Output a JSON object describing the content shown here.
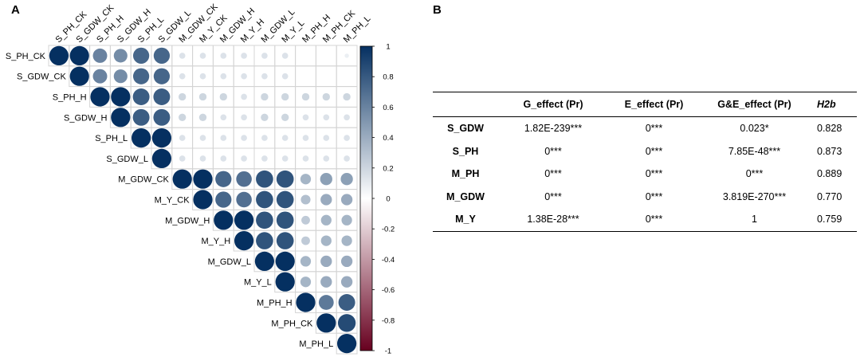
{
  "panel_a": {
    "label": "A"
  },
  "panel_b": {
    "label": "B"
  },
  "chart_data": {
    "type": "heatmap",
    "subtype": "correlation-upper-triangle",
    "title": "",
    "variables": [
      "S_PH_CK",
      "S_GDW_CK",
      "S_PH_H",
      "S_GDW_H",
      "S_PH_L",
      "S_GDW_L",
      "M_GDW_CK",
      "M_Y_CK",
      "M_GDW_H",
      "M_Y_H",
      "M_GDW_L",
      "M_Y_L",
      "M_PH_H",
      "M_PH_CK",
      "M_PH_L"
    ],
    "column_labels": [
      "S_PH_CK",
      "S_GDW_CK",
      "S_PH_H",
      "S_GDW_H",
      "S_PH_L",
      "S_GDW_L",
      "M_GDW_CK",
      "M_Y_CK",
      "M_GDW_H",
      "M_Y_H",
      "M_GDW_L",
      "M_Y_L",
      "M_PH_H",
      "M_PH_CK",
      "M_PH_L"
    ],
    "matrix": [
      [
        1,
        1,
        0.55,
        0.5,
        0.7,
        0.7,
        0.1,
        0.1,
        0.1,
        0.1,
        0.1,
        0.1,
        0,
        0,
        0.05
      ],
      [
        null,
        1,
        0.55,
        0.5,
        0.7,
        0.7,
        0.1,
        0.1,
        0.1,
        0.1,
        0.1,
        0.1,
        0,
        0,
        0
      ],
      [
        null,
        null,
        1,
        1,
        0.75,
        0.75,
        0.15,
        0.15,
        0.15,
        0.1,
        0.15,
        0.15,
        0.15,
        0.15,
        0.15
      ],
      [
        null,
        null,
        null,
        1,
        0.75,
        0.75,
        0.15,
        0.15,
        0.1,
        0.1,
        0.15,
        0.15,
        0.1,
        0.1,
        0.1
      ],
      [
        null,
        null,
        null,
        null,
        1,
        1,
        0.1,
        0.1,
        0.1,
        0.1,
        0.1,
        0.1,
        0.1,
        0.1,
        0.1
      ],
      [
        null,
        null,
        null,
        null,
        null,
        1,
        0.1,
        0.1,
        0.1,
        0.1,
        0.1,
        0.1,
        0.1,
        0.1,
        0.1
      ],
      [
        null,
        null,
        null,
        null,
        null,
        null,
        1,
        1,
        0.7,
        0.65,
        0.8,
        0.8,
        0.3,
        0.4,
        0.4
      ],
      [
        null,
        null,
        null,
        null,
        null,
        null,
        null,
        1,
        0.7,
        0.65,
        0.8,
        0.8,
        0.25,
        0.35,
        0.35
      ],
      [
        null,
        null,
        null,
        null,
        null,
        null,
        null,
        null,
        1,
        1,
        0.8,
        0.8,
        0.2,
        0.3,
        0.3
      ],
      [
        null,
        null,
        null,
        null,
        null,
        null,
        null,
        null,
        null,
        1,
        0.8,
        0.8,
        0.2,
        0.3,
        0.3
      ],
      [
        null,
        null,
        null,
        null,
        null,
        null,
        null,
        null,
        null,
        null,
        1,
        1,
        0.3,
        0.35,
        0.35
      ],
      [
        null,
        null,
        null,
        null,
        null,
        null,
        null,
        null,
        null,
        null,
        null,
        1,
        0.3,
        0.35,
        0.35
      ],
      [
        null,
        null,
        null,
        null,
        null,
        null,
        null,
        null,
        null,
        null,
        null,
        null,
        1,
        0.6,
        0.75
      ],
      [
        null,
        null,
        null,
        null,
        null,
        null,
        null,
        null,
        null,
        null,
        null,
        null,
        null,
        1,
        0.85
      ],
      [
        null,
        null,
        null,
        null,
        null,
        null,
        null,
        null,
        null,
        null,
        null,
        null,
        null,
        null,
        1
      ]
    ],
    "colorbar": {
      "range": [
        -1,
        1
      ],
      "ticks": [
        "1",
        "0.8",
        "0.6",
        "0.4",
        "0.2",
        "0",
        "-0.2",
        "-0.4",
        "-0.6",
        "-0.8",
        "-1"
      ],
      "colors": {
        "negative_end": "#67001f",
        "mid": "#ffffff",
        "positive_end": "#053061"
      }
    }
  },
  "table": {
    "headers": [
      "",
      "G_effect (Pr)",
      "E_effect (Pr)",
      "G&E_effect (Pr)",
      "H2b"
    ],
    "rows": [
      {
        "label": "S_GDW",
        "g": "1.82E-239***",
        "e": "0***",
        "ge": "0.023*",
        "h2b": "0.828"
      },
      {
        "label": "S_PH",
        "g": "0***",
        "e": "0***",
        "ge": "7.85E-48***",
        "h2b": "0.873"
      },
      {
        "label": "M_PH",
        "g": "0***",
        "e": "0***",
        "ge": "0***",
        "h2b": "0.889"
      },
      {
        "label": "M_GDW",
        "g": "0***",
        "e": "0***",
        "ge": "3.819E-270***",
        "h2b": "0.770"
      },
      {
        "label": "M_Y",
        "g": "1.38E-28***",
        "e": "0***",
        "ge": "1",
        "h2b": "0.759"
      }
    ]
  }
}
